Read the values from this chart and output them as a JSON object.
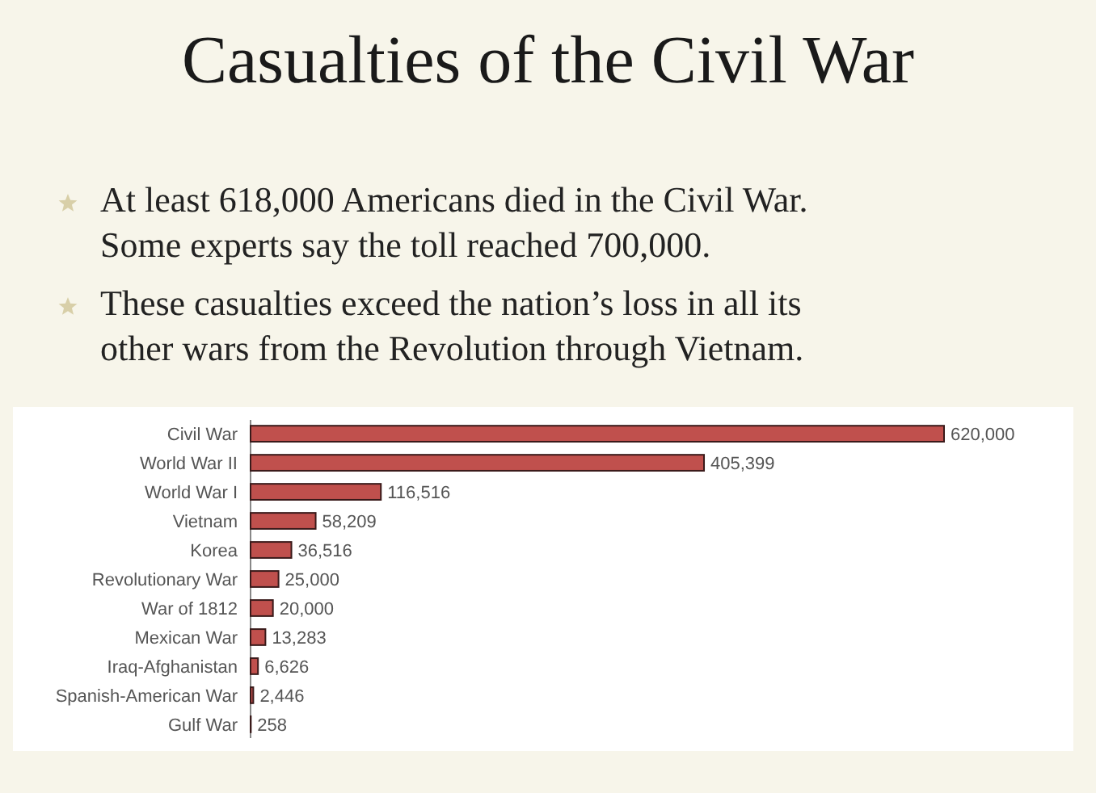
{
  "chart_data": {
    "type": "bar",
    "orientation": "horizontal",
    "title": "Casualties of the Civil War",
    "annotations": [
      "At least 618,000 Americans died in the Civil War. Some experts say the toll reached 700,000.",
      "These casualties exceed the nation’s loss in all its other wars from the Revolution through Vietnam."
    ],
    "categories": [
      "Civil War",
      "World War II",
      "World War I",
      "Vietnam",
      "Korea",
      "Revolutionary War",
      "War of 1812",
      "Mexican War",
      "Iraq-Afghanistan",
      "Spanish-American War",
      "Gulf War"
    ],
    "values": [
      620000,
      405399,
      116516,
      58209,
      36516,
      25000,
      20000,
      13283,
      6626,
      2446,
      258
    ],
    "value_labels": [
      "620,000",
      "405,399",
      "116,516",
      "58,209",
      "36,516",
      "25,000",
      "20,000",
      "13,283",
      "6,626",
      "2,446",
      "258"
    ],
    "color": "#c0504d",
    "grid": false
  }
}
